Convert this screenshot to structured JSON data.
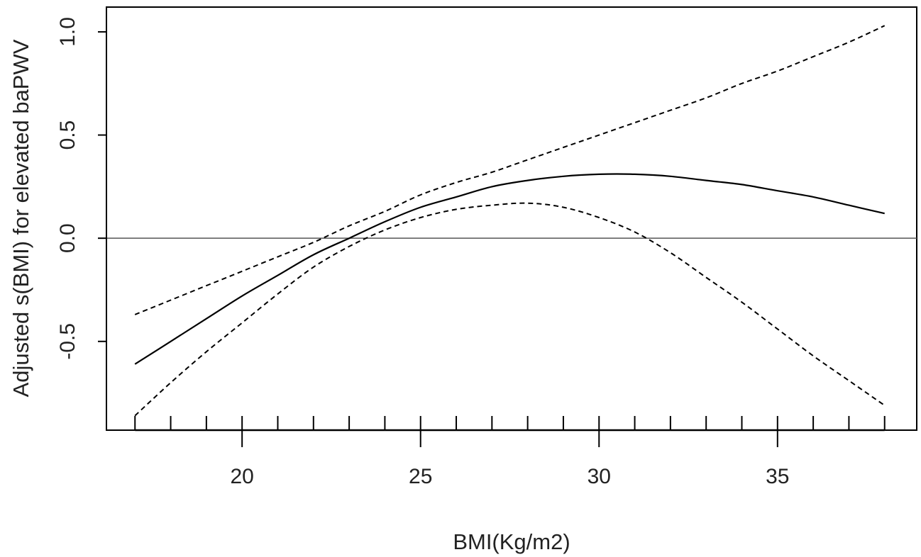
{
  "chart_data": {
    "type": "line",
    "title": "",
    "xlabel": "BMI(Kg/m2)",
    "ylabel": "Adjusted s(BMI) for elevated baPWV",
    "xlim": [
      16.2,
      38.9
    ],
    "ylim": [
      -0.93,
      1.12
    ],
    "x_ticks": [
      20,
      25,
      30,
      35
    ],
    "x_tick_labels": [
      "20",
      "25",
      "30",
      "35"
    ],
    "y_ticks": [
      -0.5,
      0.0,
      0.5,
      1.0
    ],
    "y_tick_labels": [
      "-0.5",
      "0.0",
      "0.5",
      "1.0"
    ],
    "reference_line_y": 0,
    "grid": false,
    "rug_x": [
      17,
      18,
      19,
      20,
      21,
      22,
      23,
      24,
      25,
      26,
      27,
      28,
      29,
      30,
      31,
      32,
      33,
      34,
      35,
      36,
      37,
      38
    ],
    "series": [
      {
        "style": "solid",
        "x": [
          17,
          18,
          19,
          20,
          21,
          22,
          23,
          24,
          25,
          26,
          27,
          28,
          29,
          30,
          31,
          32,
          33,
          34,
          35,
          36,
          37,
          38
        ],
        "values": [
          -0.61,
          -0.5,
          -0.39,
          -0.28,
          -0.18,
          -0.08,
          0.0,
          0.08,
          0.15,
          0.2,
          0.25,
          0.28,
          0.3,
          0.31,
          0.31,
          0.3,
          0.28,
          0.26,
          0.23,
          0.2,
          0.16,
          0.12
        ]
      },
      {
        "style": "dashed",
        "x": [
          17,
          18,
          19,
          20,
          21,
          22,
          23,
          24,
          25,
          26,
          27,
          28,
          29,
          30,
          31,
          32,
          33,
          34,
          35,
          36,
          37,
          38
        ],
        "values": [
          -0.37,
          -0.3,
          -0.23,
          -0.16,
          -0.09,
          -0.02,
          0.06,
          0.13,
          0.21,
          0.27,
          0.32,
          0.38,
          0.44,
          0.5,
          0.56,
          0.62,
          0.68,
          0.75,
          0.81,
          0.88,
          0.95,
          1.03
        ]
      },
      {
        "style": "dashed",
        "x": [
          17,
          18,
          19,
          20,
          21,
          22,
          23,
          24,
          25,
          26,
          27,
          28,
          29,
          30,
          31,
          32,
          33,
          34,
          35,
          36,
          37,
          38
        ],
        "values": [
          -0.86,
          -0.7,
          -0.55,
          -0.41,
          -0.27,
          -0.14,
          -0.04,
          0.04,
          0.1,
          0.14,
          0.16,
          0.17,
          0.15,
          0.1,
          0.03,
          -0.07,
          -0.19,
          -0.31,
          -0.44,
          -0.57,
          -0.69,
          -0.81
        ]
      }
    ]
  }
}
